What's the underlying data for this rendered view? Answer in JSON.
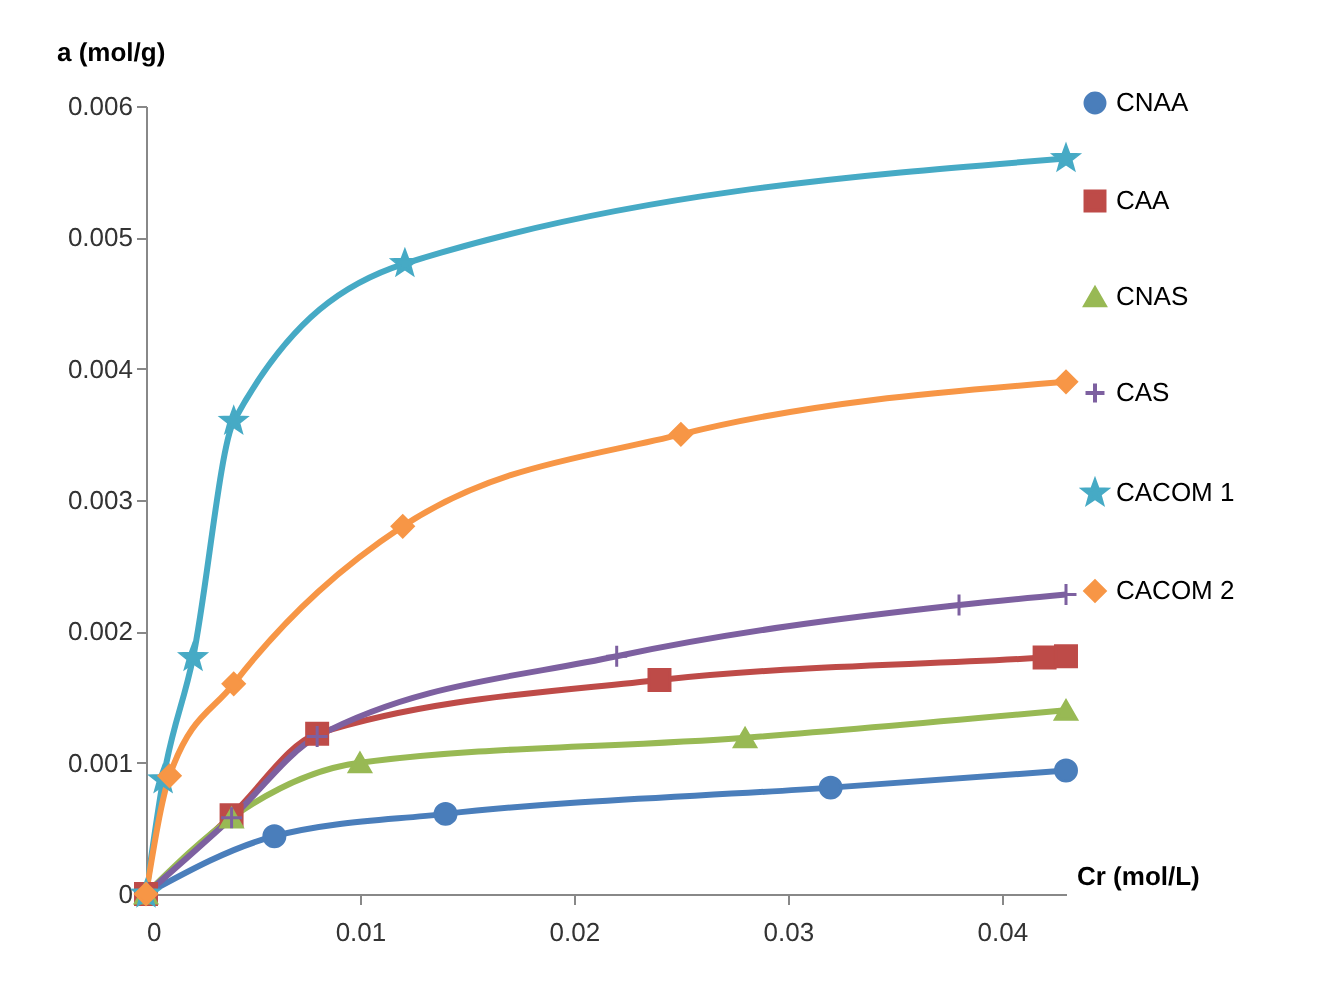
{
  "chart_data": {
    "type": "line",
    "xlabel": "Cr (mol/L)",
    "ylabel": "a (mol/g)",
    "xlim": [
      0,
      0.043
    ],
    "xticks": [
      0,
      0.01,
      0.02,
      0.03,
      0.04
    ],
    "ylim": [
      0,
      0.006
    ],
    "yticks": [
      0,
      0.001,
      0.002,
      0.003,
      0.004,
      0.005,
      0.006
    ],
    "grid": false,
    "legend": "right",
    "line_style": "solid",
    "series": [
      {
        "name": "CNAA",
        "color": "#4a7ebb",
        "marker": "circle",
        "x": [
          0,
          0.006,
          0.014,
          0.032,
          0.043
        ],
        "values": [
          0,
          0.00044,
          0.00061,
          0.00081,
          0.00094
        ]
      },
      {
        "name": "CAA",
        "color": "#be4b48",
        "marker": "square",
        "x": [
          0,
          0.004,
          0.008,
          0.024,
          0.042,
          0.043
        ],
        "values": [
          0,
          0.0006,
          0.00122,
          0.00163,
          0.0018,
          0.00181
        ]
      },
      {
        "name": "CNAS",
        "color": "#98b954",
        "marker": "triangle",
        "x": [
          0,
          0.004,
          0.01,
          0.028,
          0.043
        ],
        "values": [
          0,
          0.00058,
          0.001,
          0.00119,
          0.0014
        ]
      },
      {
        "name": "CAS",
        "color": "#7d60a0",
        "marker": "cross",
        "x": [
          0,
          0.004,
          0.008,
          0.022,
          0.038,
          0.043
        ],
        "values": [
          0,
          0.00058,
          0.0012,
          0.00181,
          0.0022,
          0.00228
        ]
      },
      {
        "name": "CACOM 1",
        "color": "#46aac5",
        "marker": "star",
        "x": [
          0,
          0.0008,
          0.0022,
          0.0041,
          0.0121,
          0.043
        ],
        "values": [
          0,
          0.00087,
          0.0018,
          0.0036,
          0.0048,
          0.0056
        ]
      },
      {
        "name": "CACOM 2",
        "color": "#f79646",
        "marker": "diamond",
        "x": [
          0,
          0.0011,
          0.0041,
          0.012,
          0.025,
          0.043
        ],
        "values": [
          0,
          0.0009,
          0.0016,
          0.0028,
          0.0035,
          0.0039
        ]
      }
    ]
  }
}
